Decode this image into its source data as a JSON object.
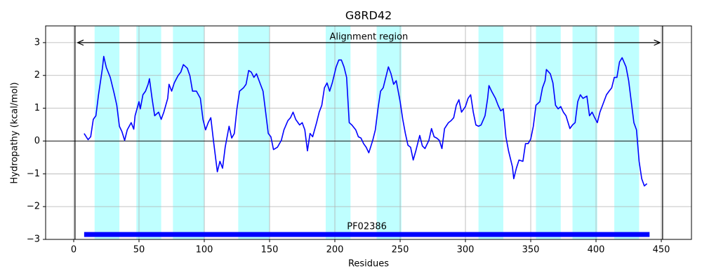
{
  "chart_data": {
    "type": "line",
    "title": "G8RD42",
    "x_label": "Residues",
    "y_label": "Hydropathy (kcal/mol)",
    "xlim": [
      -21.5,
      473.1
    ],
    "ylim": [
      -3,
      3.51
    ],
    "xticks": [
      0,
      50,
      100,
      150,
      200,
      250,
      300,
      350,
      400,
      450
    ],
    "yticks": [
      {
        "value": -3,
        "label": "−3"
      },
      {
        "value": -2,
        "label": "−2"
      },
      {
        "value": -1,
        "label": "−1"
      },
      0,
      1,
      2,
      3
    ],
    "grid": true,
    "hline": 0,
    "vlines": [
      1,
      451
    ],
    "regions": [
      [
        16,
        35
      ],
      [
        48,
        67
      ],
      [
        76,
        100
      ],
      [
        126,
        150
      ],
      [
        193,
        212
      ],
      [
        232,
        251
      ],
      [
        310,
        329
      ],
      [
        354,
        373
      ],
      [
        382,
        401
      ],
      [
        414,
        433
      ]
    ],
    "region_color": "#bfffff",
    "annotation": {
      "text": "Alignment region",
      "x": [
        3,
        449
      ],
      "y": 3
    },
    "domain": {
      "label": "PF02386",
      "x": [
        8,
        441
      ],
      "y": -2.85,
      "color": "#0000ff"
    },
    "series": [
      {
        "color": "#0000ff",
        "x": [
          8,
          11,
          13,
          15,
          17,
          19,
          22,
          23,
          25,
          28,
          31,
          33,
          35,
          37,
          39,
          41,
          44,
          46,
          47,
          50,
          51,
          53,
          55,
          57,
          58,
          60,
          62,
          65,
          67,
          69,
          72,
          73,
          75,
          77,
          80,
          82,
          84,
          87,
          89,
          91,
          94,
          97,
          99,
          101,
          103,
          105,
          107,
          110,
          112,
          114,
          116,
          119,
          121,
          123,
          125,
          127,
          130,
          132,
          134,
          136,
          138,
          140,
          143,
          145,
          147,
          149,
          151,
          153,
          156,
          159,
          161,
          164,
          166,
          168,
          170,
          173,
          175,
          177,
          179,
          181,
          183,
          186,
          188,
          190,
          192,
          194,
          196,
          198,
          201,
          203,
          205,
          207,
          209,
          211,
          213,
          216,
          218,
          220,
          222,
          224,
          226,
          229,
          231,
          233,
          235,
          237,
          239,
          241,
          243,
          245,
          247,
          250,
          252,
          254,
          256,
          258,
          260,
          262,
          265,
          267,
          269,
          272,
          274,
          276,
          278,
          280,
          282,
          284,
          287,
          289,
          291,
          293,
          295,
          297,
          300,
          302,
          304,
          306,
          308,
          310,
          312,
          315,
          317,
          318,
          320,
          323,
          325,
          327,
          329,
          331,
          333,
          336,
          337,
          339,
          341,
          344,
          346,
          348,
          350,
          352,
          354,
          357,
          359,
          361,
          362,
          365,
          367,
          369,
          371,
          373,
          375,
          377,
          380,
          382,
          384,
          386,
          388,
          390,
          393,
          395,
          397,
          399,
          401,
          403,
          405,
          408,
          410,
          412,
          414,
          416,
          418,
          420,
          423,
          425,
          427,
          429,
          431,
          433,
          435,
          437,
          439
        ],
        "values": [
          0.23,
          0.04,
          0.13,
          0.66,
          0.77,
          1.41,
          2.22,
          2.58,
          2.24,
          1.94,
          1.45,
          1.09,
          0.45,
          0.28,
          0.02,
          0.34,
          0.56,
          0.36,
          0.77,
          1.2,
          0.98,
          1.41,
          1.52,
          1.73,
          1.9,
          1.3,
          0.77,
          0.88,
          0.66,
          0.88,
          1.3,
          1.73,
          1.52,
          1.77,
          2.0,
          2.1,
          2.33,
          2.22,
          1.99,
          1.52,
          1.52,
          1.3,
          0.66,
          0.34,
          0.56,
          0.71,
          0.02,
          -0.94,
          -0.62,
          -0.83,
          -0.19,
          0.45,
          0.09,
          0.23,
          0.98,
          1.52,
          1.62,
          1.73,
          2.15,
          2.1,
          1.94,
          2.05,
          1.73,
          1.52,
          0.88,
          0.23,
          0.13,
          -0.26,
          -0.19,
          0.02,
          0.34,
          0.62,
          0.71,
          0.88,
          0.66,
          0.49,
          0.56,
          0.34,
          -0.3,
          0.23,
          0.13,
          0.56,
          0.88,
          1.09,
          1.62,
          1.77,
          1.52,
          1.77,
          2.26,
          2.47,
          2.47,
          2.26,
          1.94,
          0.56,
          0.49,
          0.34,
          0.13,
          0.09,
          -0.08,
          -0.19,
          -0.36,
          0.02,
          0.34,
          0.98,
          1.52,
          1.62,
          1.94,
          2.26,
          2.05,
          1.73,
          1.84,
          1.2,
          0.66,
          0.23,
          -0.13,
          -0.19,
          -0.58,
          -0.3,
          0.17,
          -0.15,
          -0.23,
          0.02,
          0.38,
          0.13,
          0.09,
          0.02,
          -0.23,
          0.38,
          0.56,
          0.62,
          0.71,
          1.09,
          1.26,
          0.88,
          1.05,
          1.3,
          1.41,
          0.88,
          0.49,
          0.45,
          0.49,
          0.77,
          1.3,
          1.69,
          1.52,
          1.3,
          1.09,
          0.92,
          0.98,
          0.13,
          -0.3,
          -0.79,
          -1.15,
          -0.83,
          -0.58,
          -0.62,
          -0.08,
          -0.08,
          0.06,
          0.45,
          1.09,
          1.2,
          1.62,
          1.84,
          2.18,
          2.05,
          1.77,
          1.09,
          0.98,
          1.05,
          0.88,
          0.77,
          0.38,
          0.49,
          0.56,
          1.2,
          1.41,
          1.3,
          1.37,
          0.77,
          0.88,
          0.71,
          0.56,
          0.88,
          1.09,
          1.41,
          1.52,
          1.62,
          1.94,
          1.94,
          2.41,
          2.54,
          2.26,
          1.84,
          1.2,
          0.56,
          0.34,
          -0.62,
          -1.15,
          -1.37,
          -1.3
        ]
      }
    ]
  }
}
